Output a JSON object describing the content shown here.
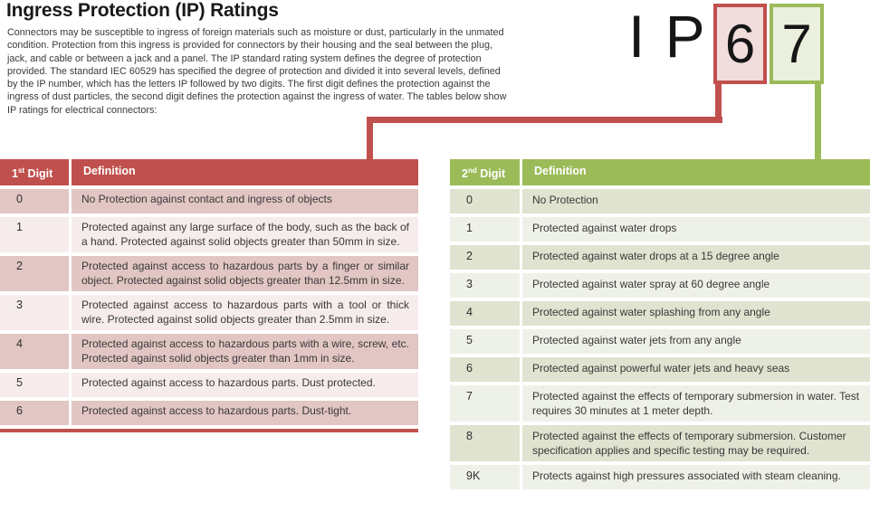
{
  "page": {
    "title": "Ingress Protection (IP) Ratings",
    "intro": "Connectors may be susceptible to ingress of foreign materials such as moisture or dust, particularly in the unmated condition. Protection from this ingress is provided for connectors by their housing and the seal between the plug, jack, and cable or between a jack and a panel. The IP standard rating system defines the degree of protection provided. The standard IEC 60529 has specified the degree of protection and divided it into several levels, defined by the IP number, which has the letters IP followed by two digits. The first digit defines the protection against the ingress of dust particles, the second digit defines the protection against the ingress of water. The tables below show IP ratings for electrical connectors:"
  },
  "ip_graphic": {
    "prefix": "I P",
    "first_digit": "6",
    "second_digit": "7"
  },
  "colors": {
    "accent_red": "#c0504d",
    "accent_green": "#9bbb59",
    "red_row_dark": "#e2c6c4",
    "red_row_light": "#f5eceb",
    "green_row_dark": "#dfe3cf",
    "green_row_light": "#eef1e7",
    "red_box_fill": "#f1dddc",
    "green_box_fill": "#eaf0dd"
  },
  "first_digit_table": {
    "header": {
      "digit_num": "1",
      "digit_sup": "st",
      "digit_word": " Digit",
      "definition": "Definition"
    },
    "rows": [
      {
        "digit": "0",
        "definition": "No Protection against contact and ingress of objects"
      },
      {
        "digit": "1",
        "definition": "Protected against any large surface of the body, such as the back of a hand. Protected against solid objects greater than 50mm in size."
      },
      {
        "digit": "2",
        "definition": "Protected against access to hazardous parts by a finger or similar object. Protected against solid objects greater than 12.5mm in size."
      },
      {
        "digit": "3",
        "definition": "Protected against access to hazardous parts with a tool or thick wire. Protected against solid objects greater than 2.5mm in size."
      },
      {
        "digit": "4",
        "definition": "Protected against access to hazardous parts with a wire, screw, etc. Protected against solid objects greater than 1mm in size."
      },
      {
        "digit": "5",
        "definition": "Protected against access to hazardous parts. Dust protected."
      },
      {
        "digit": "6",
        "definition": "Protected against access to hazardous parts. Dust-tight."
      }
    ]
  },
  "second_digit_table": {
    "header": {
      "digit_num": "2",
      "digit_sup": "nd",
      "digit_word": " Digit",
      "definition": "Definition"
    },
    "rows": [
      {
        "digit": "0",
        "definition": "No Protection"
      },
      {
        "digit": "1",
        "definition": "Protected against water drops"
      },
      {
        "digit": "2",
        "definition": "Protected against water drops at a 15 degree angle"
      },
      {
        "digit": "3",
        "definition": "Protected against water spray at 60 degree angle"
      },
      {
        "digit": "4",
        "definition": "Protected against water splashing from any angle"
      },
      {
        "digit": "5",
        "definition": "Protected against water jets from any angle"
      },
      {
        "digit": "6",
        "definition": "Protected against powerful water jets and heavy seas"
      },
      {
        "digit": "7",
        "definition": "Protected against the effects of temporary submersion in water. Test requires 30 minutes at 1 meter depth."
      },
      {
        "digit": "8",
        "definition": "Protected against the effects of temporary submersion. Customer specification applies and specific testing may be required."
      },
      {
        "digit": "9K",
        "definition": "Protects against high pressures associated with steam cleaning."
      }
    ]
  }
}
